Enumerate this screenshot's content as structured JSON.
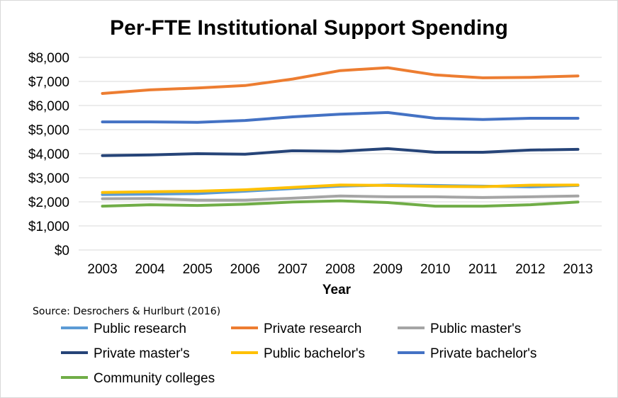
{
  "chart_data": {
    "type": "line",
    "title": "Per-FTE Institutional Support Spending",
    "xlabel": "Year",
    "ylabel": "",
    "ylim": [
      0,
      8000
    ],
    "grid": true,
    "legend_position": "bottom",
    "categories": [
      "2003",
      "2004",
      "2005",
      "2006",
      "2007",
      "2008",
      "2009",
      "2010",
      "2011",
      "2012",
      "2013"
    ],
    "y_ticks": [
      {
        "value": 0,
        "label": "$0"
      },
      {
        "value": 1000,
        "label": "$1,000"
      },
      {
        "value": 2000,
        "label": "$2,000"
      },
      {
        "value": 3000,
        "label": "$3,000"
      },
      {
        "value": 4000,
        "label": "$4,000"
      },
      {
        "value": 5000,
        "label": "$5,000"
      },
      {
        "value": 6000,
        "label": "$6,000"
      },
      {
        "value": 7000,
        "label": "$7,000"
      },
      {
        "value": 8000,
        "label": "$8,000"
      }
    ],
    "series": [
      {
        "name": "Public research",
        "color": "#5B9BD5",
        "values": [
          2300,
          2320,
          2340,
          2440,
          2550,
          2650,
          2700,
          2680,
          2650,
          2620,
          2680
        ]
      },
      {
        "name": "Private research",
        "color": "#ED7D31",
        "values": [
          6500,
          6650,
          6730,
          6830,
          7100,
          7450,
          7570,
          7270,
          7150,
          7170,
          7230
        ]
      },
      {
        "name": "Public master's",
        "color": "#A5A5A5",
        "values": [
          2130,
          2140,
          2070,
          2070,
          2150,
          2240,
          2210,
          2210,
          2180,
          2210,
          2240
        ]
      },
      {
        "name": "Private master's",
        "color": "#264478",
        "values": [
          3920,
          3950,
          4000,
          3980,
          4120,
          4100,
          4210,
          4060,
          4060,
          4150,
          4180
        ]
      },
      {
        "name": "Public bachelor's",
        "color": "#FFC000",
        "values": [
          2390,
          2420,
          2440,
          2500,
          2600,
          2700,
          2680,
          2640,
          2630,
          2690,
          2700
        ]
      },
      {
        "name": "Private bachelor's",
        "color": "#4472C4",
        "values": [
          5320,
          5320,
          5300,
          5380,
          5530,
          5640,
          5710,
          5470,
          5420,
          5470,
          5470
        ]
      },
      {
        "name": "Community colleges",
        "color": "#70AD47",
        "values": [
          1820,
          1880,
          1850,
          1900,
          1990,
          2040,
          1970,
          1820,
          1820,
          1880,
          1990
        ]
      }
    ],
    "annotations": [
      "Source: Desrochers & Hurlburt (2016)"
    ]
  }
}
